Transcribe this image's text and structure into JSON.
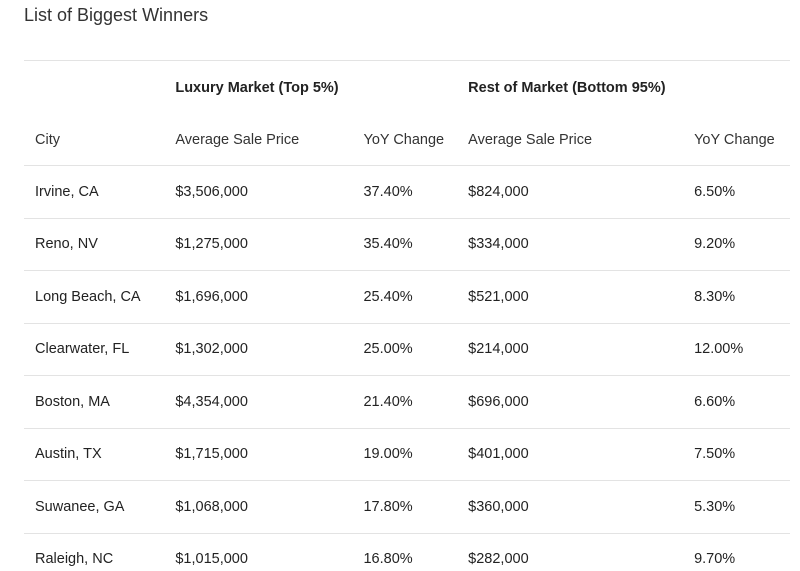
{
  "title": "List of Biggest Winners",
  "groups": {
    "luxury": "Luxury Market (Top 5%)",
    "rest": "Rest of Market (Bottom 95%)"
  },
  "columns": [
    "City",
    "Average Sale Price",
    "YoY Change",
    "Average Sale Price",
    "YoY Change"
  ],
  "rows": [
    [
      "Irvine, CA",
      "$3,506,000",
      "37.40%",
      "$824,000",
      "6.50%"
    ],
    [
      "Reno, NV",
      "$1,275,000",
      "35.40%",
      "$334,000",
      "9.20%"
    ],
    [
      "Long Beach, CA",
      "$1,696,000",
      "25.40%",
      "$521,000",
      "8.30%"
    ],
    [
      "Clearwater, FL",
      "$1,302,000",
      "25.00%",
      "$214,000",
      "12.00%"
    ],
    [
      "Boston, MA",
      "$4,354,000",
      "21.40%",
      "$696,000",
      "6.60%"
    ],
    [
      "Austin, TX",
      "$1,715,000",
      "19.00%",
      "$401,000",
      "7.50%"
    ],
    [
      "Suwanee, GA",
      "$1,068,000",
      "17.80%",
      "$360,000",
      "5.30%"
    ],
    [
      "Raleigh, NC",
      "$1,015,000",
      "16.80%",
      "$282,000",
      "9.70%"
    ]
  ]
}
